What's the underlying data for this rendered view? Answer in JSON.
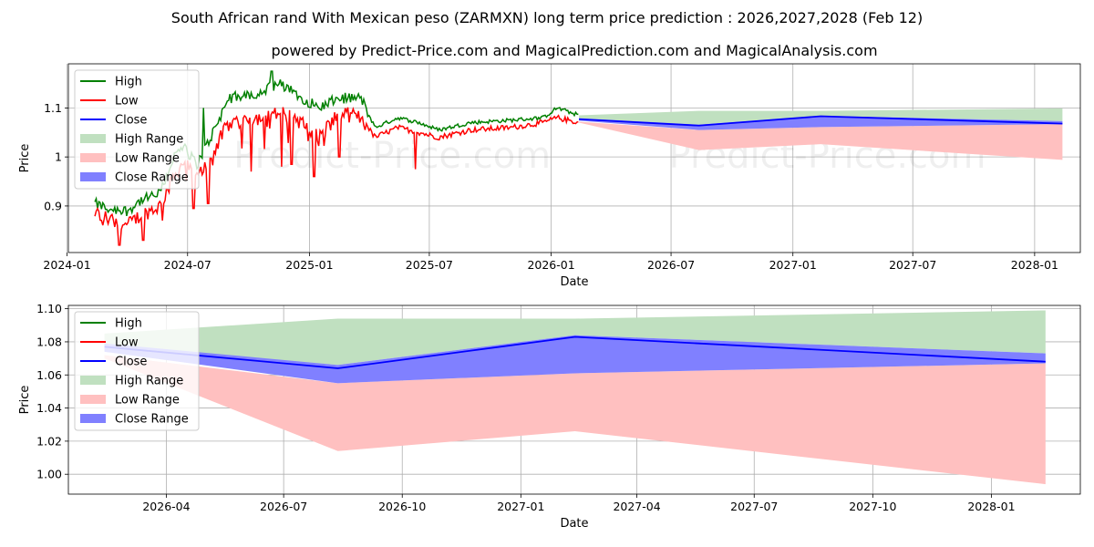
{
  "title": "South African rand With Mexican peso (ZARMXN) long term price prediction : 2026,2027,2028 (Feb 12)",
  "subtitle": "powered by Predict-Price.com and MagicalPrediction.com and MagicalAnalysis.com",
  "watermark": "Predict-Price.com",
  "colors": {
    "high": "#008000",
    "low": "#ff0000",
    "close": "#0000ff",
    "high_range": "#c0e0c0",
    "low_range": "#ffc0c0",
    "close_range": "#8080ff"
  },
  "chart_data": [
    {
      "type": "line",
      "name": "history-and-forecast",
      "xlabel": "Date",
      "ylabel": "Price",
      "xlim": [
        "2024-01-03",
        "2028-03-10"
      ],
      "ylim": [
        0.805,
        1.19
      ],
      "grid": true,
      "legend_position": "top-left",
      "legend": [
        "High",
        "Low",
        "Close",
        "High Range",
        "Low Range",
        "Close Range"
      ],
      "x_ticks": [
        {
          "date": "2024-01-01",
          "label": "2024-01"
        },
        {
          "date": "2024-07-01",
          "label": "2024-07"
        },
        {
          "date": "2025-01-01",
          "label": "2025-01"
        },
        {
          "date": "2025-07-01",
          "label": "2025-07"
        },
        {
          "date": "2026-01-01",
          "label": "2026-01"
        },
        {
          "date": "2026-07-01",
          "label": "2026-07"
        },
        {
          "date": "2027-01-01",
          "label": "2027-01"
        },
        {
          "date": "2027-07-01",
          "label": "2027-07"
        },
        {
          "date": "2028-01-01",
          "label": "2028-01"
        }
      ],
      "y_ticks": [
        0.9,
        1.0,
        1.1
      ],
      "history_anchors": [
        {
          "date": "2024-02-12",
          "high": 0.905,
          "low": 0.885
        },
        {
          "date": "2024-03-01",
          "high": 0.895,
          "low": 0.875
        },
        {
          "date": "2024-04-01",
          "high": 0.89,
          "low": 0.86
        },
        {
          "date": "2024-04-20",
          "high": 0.91,
          "low": 0.88
        },
        {
          "date": "2024-05-20",
          "high": 0.925,
          "low": 0.9
        },
        {
          "date": "2024-06-10",
          "high": 1.0,
          "low": 0.96
        },
        {
          "date": "2024-06-25",
          "high": 1.02,
          "low": 0.99
        },
        {
          "date": "2024-07-15",
          "high": 0.985,
          "low": 0.955
        },
        {
          "date": "2024-08-05",
          "high": 1.04,
          "low": 1.0
        },
        {
          "date": "2024-09-01",
          "high": 1.12,
          "low": 1.07
        },
        {
          "date": "2024-10-15",
          "high": 1.13,
          "low": 1.08
        },
        {
          "date": "2024-11-15",
          "high": 1.15,
          "low": 1.09
        },
        {
          "date": "2024-12-10",
          "high": 1.13,
          "low": 1.08
        },
        {
          "date": "2025-01-15",
          "high": 1.1,
          "low": 1.04
        },
        {
          "date": "2025-02-15",
          "high": 1.12,
          "low": 1.09
        },
        {
          "date": "2025-03-20",
          "high": 1.12,
          "low": 1.08
        },
        {
          "date": "2025-04-10",
          "high": 1.06,
          "low": 1.04
        },
        {
          "date": "2025-05-15",
          "high": 1.08,
          "low": 1.06
        },
        {
          "date": "2025-06-15",
          "high": 1.07,
          "low": 1.05
        },
        {
          "date": "2025-07-15",
          "high": 1.055,
          "low": 1.04
        },
        {
          "date": "2025-09-01",
          "high": 1.07,
          "low": 1.055
        },
        {
          "date": "2025-11-01",
          "high": 1.075,
          "low": 1.06
        },
        {
          "date": "2025-12-20",
          "high": 1.08,
          "low": 1.07
        },
        {
          "date": "2026-01-10",
          "high": 1.1,
          "low": 1.08
        },
        {
          "date": "2026-02-12",
          "high": 1.085,
          "low": 1.07
        }
      ],
      "history_spikes_low": [
        {
          "date": "2024-03-20",
          "value": 0.82
        },
        {
          "date": "2024-04-25",
          "value": 0.83
        },
        {
          "date": "2024-07-10",
          "value": 0.895
        },
        {
          "date": "2024-08-01",
          "value": 0.905
        },
        {
          "date": "2024-10-05",
          "value": 0.97
        },
        {
          "date": "2024-11-20",
          "value": 0.98
        },
        {
          "date": "2024-12-05",
          "value": 0.985
        },
        {
          "date": "2025-01-08",
          "value": 0.96
        },
        {
          "date": "2025-02-15",
          "value": 1.0
        },
        {
          "date": "2025-06-10",
          "value": 0.975
        }
      ],
      "history_spikes_high": [
        {
          "date": "2024-07-25",
          "value": 1.1
        },
        {
          "date": "2024-11-05",
          "value": 1.175
        }
      ],
      "forecast": [
        {
          "date": "2026-02-12",
          "high": 1.085,
          "high_min": 1.078,
          "low_max": 1.072,
          "low": 1.07,
          "close": 1.077,
          "close_min": 1.074,
          "close_max": 1.079
        },
        {
          "date": "2026-08-12",
          "high": 1.094,
          "high_min": 1.066,
          "low_max": 1.055,
          "low": 1.014,
          "close": 1.064,
          "close_min": 1.055,
          "close_max": 1.066
        },
        {
          "date": "2027-02-12",
          "high": 1.094,
          "high_min": 1.084,
          "low_max": 1.061,
          "low": 1.026,
          "close": 1.083,
          "close_min": 1.061,
          "close_max": 1.084
        },
        {
          "date": "2028-02-12",
          "high": 1.099,
          "high_min": 1.073,
          "low_max": 1.067,
          "low": 0.994,
          "close": 1.068,
          "close_min": 1.067,
          "close_max": 1.073
        }
      ]
    },
    {
      "type": "area",
      "name": "forecast-zoom",
      "xlabel": "Date",
      "ylabel": "Price",
      "xlim": [
        "2026-01-15",
        "2028-03-10"
      ],
      "ylim": [
        0.988,
        1.102
      ],
      "grid": true,
      "legend_position": "top-left",
      "legend": [
        "High",
        "Low",
        "Close",
        "High Range",
        "Low Range",
        "Close Range"
      ],
      "x_ticks": [
        {
          "date": "2026-04-01",
          "label": "2026-04"
        },
        {
          "date": "2026-07-01",
          "label": "2026-07"
        },
        {
          "date": "2026-10-01",
          "label": "2026-10"
        },
        {
          "date": "2027-01-01",
          "label": "2027-01"
        },
        {
          "date": "2027-04-01",
          "label": "2027-04"
        },
        {
          "date": "2027-07-01",
          "label": "2027-07"
        },
        {
          "date": "2027-10-01",
          "label": "2027-10"
        },
        {
          "date": "2028-01-01",
          "label": "2028-01"
        }
      ],
      "y_ticks": [
        "1.00",
        "1.02",
        "1.04",
        "1.06",
        "1.08",
        "1.10"
      ],
      "series": [
        {
          "name": "Close",
          "dates": [
            "2026-02-12",
            "2026-08-12",
            "2027-02-12",
            "2028-02-12"
          ],
          "values": [
            1.077,
            1.064,
            1.083,
            1.068
          ]
        },
        {
          "name": "High Range",
          "dates": [
            "2026-02-12",
            "2026-08-12",
            "2027-02-12",
            "2028-02-12"
          ],
          "upper": [
            1.085,
            1.094,
            1.094,
            1.099
          ],
          "lower": [
            1.078,
            1.066,
            1.084,
            1.073
          ]
        },
        {
          "name": "Low Range",
          "dates": [
            "2026-02-12",
            "2026-08-12",
            "2027-02-12",
            "2028-02-12"
          ],
          "upper": [
            1.072,
            1.055,
            1.061,
            1.067
          ],
          "lower": [
            1.07,
            1.014,
            1.026,
            0.994
          ]
        },
        {
          "name": "Close Range",
          "dates": [
            "2026-02-12",
            "2026-08-12",
            "2027-02-12",
            "2028-02-12"
          ],
          "upper": [
            1.079,
            1.066,
            1.084,
            1.073
          ],
          "lower": [
            1.074,
            1.055,
            1.061,
            1.067
          ]
        }
      ]
    }
  ]
}
